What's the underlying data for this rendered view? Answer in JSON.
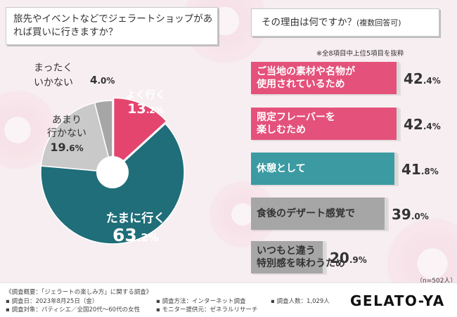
{
  "chart_data": [
    {
      "type": "pie",
      "title": "旅先やイベントなどでジェラートショップがあれば買いに行きますか？",
      "categories": [
        "よく行く",
        "たまに行く",
        "あまり行かない",
        "まったくいかない"
      ],
      "values": [
        13.2,
        63.2,
        19.6,
        4.0
      ],
      "colors": [
        "#e4456f",
        "#1f6e79",
        "#c9c9c9",
        "#a6a6a6"
      ],
      "labels": [
        {
          "name": "よく行く",
          "pct": "13",
          "dec": ".2",
          "unit": "%"
        },
        {
          "name": "たまに行く",
          "pct": "63",
          "dec": ".2",
          "unit": "%"
        },
        {
          "name_line1": "あまり",
          "name_line2": "行かない",
          "pct": "19",
          "dec": ".6",
          "unit": "%"
        },
        {
          "name_line1": "まったく",
          "name_line2": "いかない",
          "pct": "4",
          "dec": ".0",
          "unit": "%"
        }
      ]
    },
    {
      "type": "bar",
      "orientation": "horizontal",
      "title": "その理由は何ですか？",
      "subtitle": "(複数回答可)",
      "note": "※全8項目中上位5項目を抜粋",
      "n_label": "（n=502人）",
      "xlim": [
        0,
        45
      ],
      "categories": [
        [
          "ご当地の素材や名物が",
          "使用されているため"
        ],
        [
          "限定フレーバーを",
          "楽しむため"
        ],
        [
          "休憩として"
        ],
        [
          "食後のデザート感覚で"
        ],
        [
          "いつもと違う",
          "特別感を味わうため"
        ]
      ],
      "values": [
        42.4,
        42.4,
        41.8,
        39.0,
        20.9
      ],
      "value_parts": [
        {
          "int": "42",
          "dec": ".4",
          "unit": "%"
        },
        {
          "int": "42",
          "dec": ".4",
          "unit": "%"
        },
        {
          "int": "41",
          "dec": ".8",
          "unit": "%"
        },
        {
          "int": "39",
          "dec": ".0",
          "unit": "%"
        },
        {
          "int": "20",
          "dec": ".9",
          "unit": "%"
        }
      ],
      "colors": [
        "#e4517a",
        "#e4517a",
        "#3c9ba2",
        "#a6a6a6",
        "#a6a6a6"
      ],
      "label_colors": [
        "#ffffff",
        "#ffffff",
        "#ffffff",
        "#333333",
        "#333333"
      ]
    }
  ],
  "footer": {
    "title": "《調査概要：「ジェラートの楽しみ方」に関する調査》",
    "date": "▪ 調査日：2023年8月25日（金）",
    "target": "▪ 調査対象：パティシエ／全国20代～60代の女性",
    "method": "▪ 調査方法：インターネット調査",
    "provider": "▪ モニター提供元：ゼネラルリサーチ",
    "count": "▪ 調査人数：1,029人",
    "logo": "GELATO-YA"
  }
}
